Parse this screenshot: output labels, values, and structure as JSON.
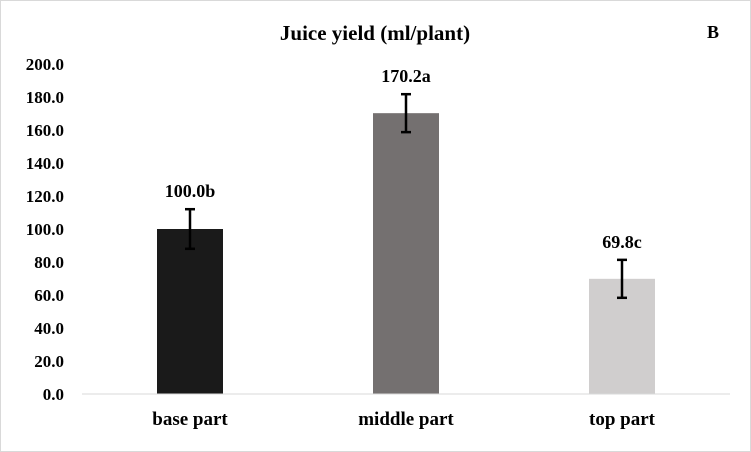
{
  "chart_data": {
    "type": "bar",
    "title": "Juice yield (ml/plant)",
    "panel_label": "B",
    "categories": [
      "base part",
      "middle part",
      "top part"
    ],
    "values": [
      100.0,
      170.2,
      69.8
    ],
    "errors": [
      12,
      11.5,
      11.5
    ],
    "data_labels": [
      "100.0b",
      "170.2a",
      "69.8c"
    ],
    "bar_colors": [
      "#1a1a1a",
      "#747070",
      "#d0cece"
    ],
    "ylim": [
      0,
      200
    ],
    "yticks": [
      "0.0",
      "20.0",
      "40.0",
      "60.0",
      "80.0",
      "100.0",
      "120.0",
      "140.0",
      "160.0",
      "180.0",
      "200.0"
    ],
    "xlabel": "",
    "ylabel": "",
    "grid": false,
    "legend": "none"
  }
}
